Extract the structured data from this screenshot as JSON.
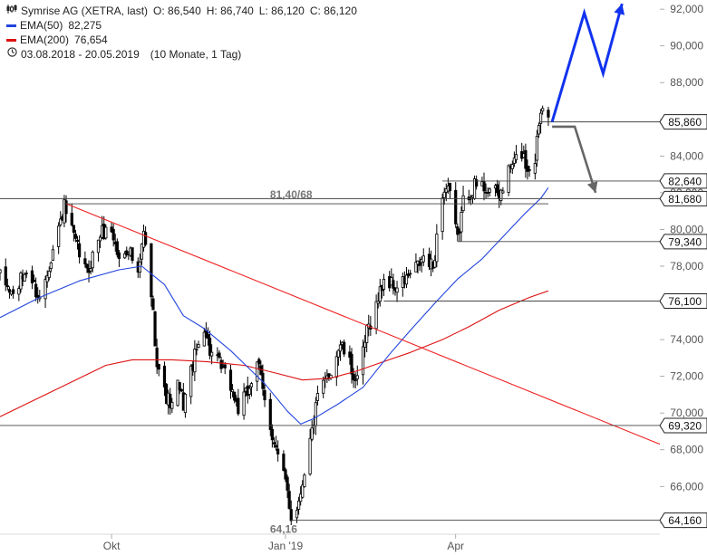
{
  "legend": {
    "instrument": "Symrise AG (XETRA, last)",
    "open_label": "O:",
    "open": "86,540",
    "high_label": "H:",
    "high": "86,740",
    "low_label": "L:",
    "low": "86,120",
    "close_label": "C:",
    "close": "86,120",
    "ema50_label": "EMA(50)",
    "ema50_value": "82,275",
    "ema200_label": "EMA(200)",
    "ema200_value": "76,654",
    "period": "03.08.2018 - 20.05.2019",
    "period_detail": "(10 Monate, 1 Tag)"
  },
  "colors": {
    "candle": "#000000",
    "ema50": "#2244dd",
    "ema200": "#dd1111",
    "trendline": "#ee2222",
    "level": "#444444",
    "bull_arrow": "#1133ee",
    "bear_arrow": "#666666",
    "axis_text": "#555555"
  },
  "chart_data": {
    "type": "candlestick",
    "title": "Symrise AG (XETRA, last)",
    "ylim": [
      63.4,
      92.5
    ],
    "y_ticks": [
      64,
      66,
      68,
      70,
      72,
      74,
      76,
      78,
      80,
      82,
      84,
      86,
      88,
      90,
      92
    ],
    "y_tick_labels": [
      "64,000",
      "66,000",
      "68,000",
      "70,000",
      "72,000",
      "74,000",
      "76,000",
      "78,000",
      "80,000",
      "82,000",
      "84,000",
      "86,000",
      "88,000",
      "90,000",
      "92,000"
    ],
    "x_labels": [
      {
        "label": "Okt",
        "date": "2018-10-01"
      },
      {
        "label": "Jan '19",
        "date": "2019-01-01"
      },
      {
        "label": "Apr",
        "date": "2019-04-01"
      }
    ],
    "x_range": [
      "2018-08-03",
      "2019-07-18"
    ],
    "price_path": [
      [
        "2018-08-03",
        77.4
      ],
      [
        "2018-08-10",
        76.4
      ],
      [
        "2018-08-17",
        77.8
      ],
      [
        "2018-08-24",
        76.2
      ],
      [
        "2018-08-31",
        78.9
      ],
      [
        "2018-09-06",
        81.2
      ],
      [
        "2018-09-12",
        79.2
      ],
      [
        "2018-09-18",
        77.6
      ],
      [
        "2018-09-25",
        79.8
      ],
      [
        "2018-10-01",
        80.0
      ],
      [
        "2018-10-05",
        78.3
      ],
      [
        "2018-10-10",
        79.1
      ],
      [
        "2018-10-15",
        77.3
      ],
      [
        "2018-10-18",
        79.8
      ],
      [
        "2018-10-22",
        76.5
      ],
      [
        "2018-10-25",
        72.9
      ],
      [
        "2018-10-29",
        71.1
      ],
      [
        "2018-11-02",
        70.3
      ],
      [
        "2018-11-05",
        71.5
      ],
      [
        "2018-11-08",
        70.5
      ],
      [
        "2018-11-13",
        72.7
      ],
      [
        "2018-11-19",
        74.8
      ],
      [
        "2018-11-22",
        73.4
      ],
      [
        "2018-11-27",
        72.6
      ],
      [
        "2018-12-03",
        71.5
      ],
      [
        "2018-12-07",
        70.2
      ],
      [
        "2018-12-12",
        71.1
      ],
      [
        "2018-12-17",
        72.9
      ],
      [
        "2018-12-21",
        70.6
      ],
      [
        "2018-12-28",
        67.6
      ],
      [
        "2019-01-02",
        65.8
      ],
      [
        "2019-01-04",
        64.3
      ],
      [
        "2019-01-08",
        65.2
      ],
      [
        "2019-01-11",
        66.9
      ],
      [
        "2019-01-15",
        69.0
      ],
      [
        "2019-01-18",
        70.8
      ],
      [
        "2019-01-24",
        72.1
      ],
      [
        "2019-01-30",
        73.8
      ],
      [
        "2019-02-04",
        72.6
      ],
      [
        "2019-02-08",
        71.6
      ],
      [
        "2019-02-13",
        74.4
      ],
      [
        "2019-02-18",
        75.9
      ],
      [
        "2019-02-22",
        77.3
      ],
      [
        "2019-03-01",
        76.8
      ],
      [
        "2019-03-08",
        77.5
      ],
      [
        "2019-03-15",
        78.4
      ],
      [
        "2019-03-20",
        77.9
      ],
      [
        "2019-03-25",
        82.0
      ],
      [
        "2019-03-28",
        82.3
      ],
      [
        "2019-04-02",
        79.4
      ],
      [
        "2019-04-05",
        81.5
      ],
      [
        "2019-04-11",
        82.4
      ],
      [
        "2019-04-17",
        82.3
      ],
      [
        "2019-04-24",
        81.8
      ],
      [
        "2019-04-30",
        83.4
      ],
      [
        "2019-05-06",
        84.2
      ],
      [
        "2019-05-09",
        83.3
      ],
      [
        "2019-05-13",
        83.9
      ],
      [
        "2019-05-15",
        85.9
      ],
      [
        "2019-05-17",
        87.0
      ],
      [
        "2019-05-20",
        86.12
      ]
    ],
    "series": [
      {
        "name": "EMA(50)",
        "points": [
          [
            "2018-08-03",
            75.2
          ],
          [
            "2018-08-24",
            76.3
          ],
          [
            "2018-09-14",
            77.2
          ],
          [
            "2018-10-05",
            77.8
          ],
          [
            "2018-10-17",
            78.0
          ],
          [
            "2018-10-29",
            77.0
          ],
          [
            "2018-11-08",
            75.3
          ],
          [
            "2018-11-19",
            74.6
          ],
          [
            "2018-12-03",
            73.4
          ],
          [
            "2018-12-12",
            72.5
          ],
          [
            "2018-12-21",
            71.6
          ],
          [
            "2019-01-02",
            70.1
          ],
          [
            "2019-01-09",
            69.4
          ],
          [
            "2019-01-16",
            69.7
          ],
          [
            "2019-01-29",
            70.5
          ],
          [
            "2019-02-11",
            71.4
          ],
          [
            "2019-02-25",
            73.2
          ],
          [
            "2019-03-08",
            74.5
          ],
          [
            "2019-03-22",
            76.1
          ],
          [
            "2019-04-02",
            77.3
          ],
          [
            "2019-04-15",
            78.4
          ],
          [
            "2019-04-26",
            79.6
          ],
          [
            "2019-05-07",
            80.8
          ],
          [
            "2019-05-16",
            81.7
          ],
          [
            "2019-05-20",
            82.275
          ]
        ]
      },
      {
        "name": "EMA(200)",
        "points": [
          [
            "2018-08-03",
            69.8
          ],
          [
            "2018-08-31",
            71.2
          ],
          [
            "2018-09-28",
            72.6
          ],
          [
            "2018-10-12",
            72.9
          ],
          [
            "2018-11-02",
            72.9
          ],
          [
            "2018-11-20",
            72.8
          ],
          [
            "2018-12-10",
            72.6
          ],
          [
            "2018-12-26",
            72.2
          ],
          [
            "2019-01-10",
            71.8
          ],
          [
            "2019-01-25",
            71.9
          ],
          [
            "2019-02-08",
            72.3
          ],
          [
            "2019-02-22",
            72.8
          ],
          [
            "2019-03-08",
            73.3
          ],
          [
            "2019-03-25",
            74.0
          ],
          [
            "2019-04-08",
            74.7
          ],
          [
            "2019-04-24",
            75.6
          ],
          [
            "2019-05-10",
            76.3
          ],
          [
            "2019-05-20",
            76.654
          ]
        ]
      }
    ],
    "levels": [
      {
        "value": 85.86,
        "label": "85,860",
        "from": "2019-05-15"
      },
      {
        "value": 82.64,
        "label": "82,640",
        "from": "2019-03-25"
      },
      {
        "value": 81.68,
        "label": "81,680",
        "from": "2018-08-03"
      },
      {
        "value": 81.4,
        "label": "81,40/68",
        "from": "2018-09-06",
        "to": "2019-05-20"
      },
      {
        "value": 79.34,
        "label": "79,340",
        "from": "2019-04-02"
      },
      {
        "value": 76.1,
        "label": "76,100",
        "from": "2019-02-22"
      },
      {
        "value": 69.32,
        "label": "69,320",
        "from": "2018-08-03"
      },
      {
        "value": 64.16,
        "label": "64,160",
        "from": "2019-01-04"
      }
    ],
    "annotations": [
      {
        "text": "81,40/68",
        "date": "2019-01-04",
        "value": 81.4
      },
      {
        "text": "64,16",
        "date": "2018-12-31",
        "value": 64.16
      }
    ],
    "trendline": [
      [
        "2018-09-07",
        81.4
      ],
      [
        "2019-07-18",
        68.3
      ]
    ],
    "scenario_up": [
      [
        "2019-05-22",
        85.86
      ],
      [
        "2019-06-08",
        91.8
      ],
      [
        "2019-06-18",
        88.5
      ],
      [
        "2019-06-28",
        92.3
      ]
    ],
    "scenario_down": [
      [
        "2019-05-22",
        85.6
      ],
      [
        "2019-06-03",
        85.6
      ],
      [
        "2019-06-14",
        82.0
      ]
    ]
  }
}
